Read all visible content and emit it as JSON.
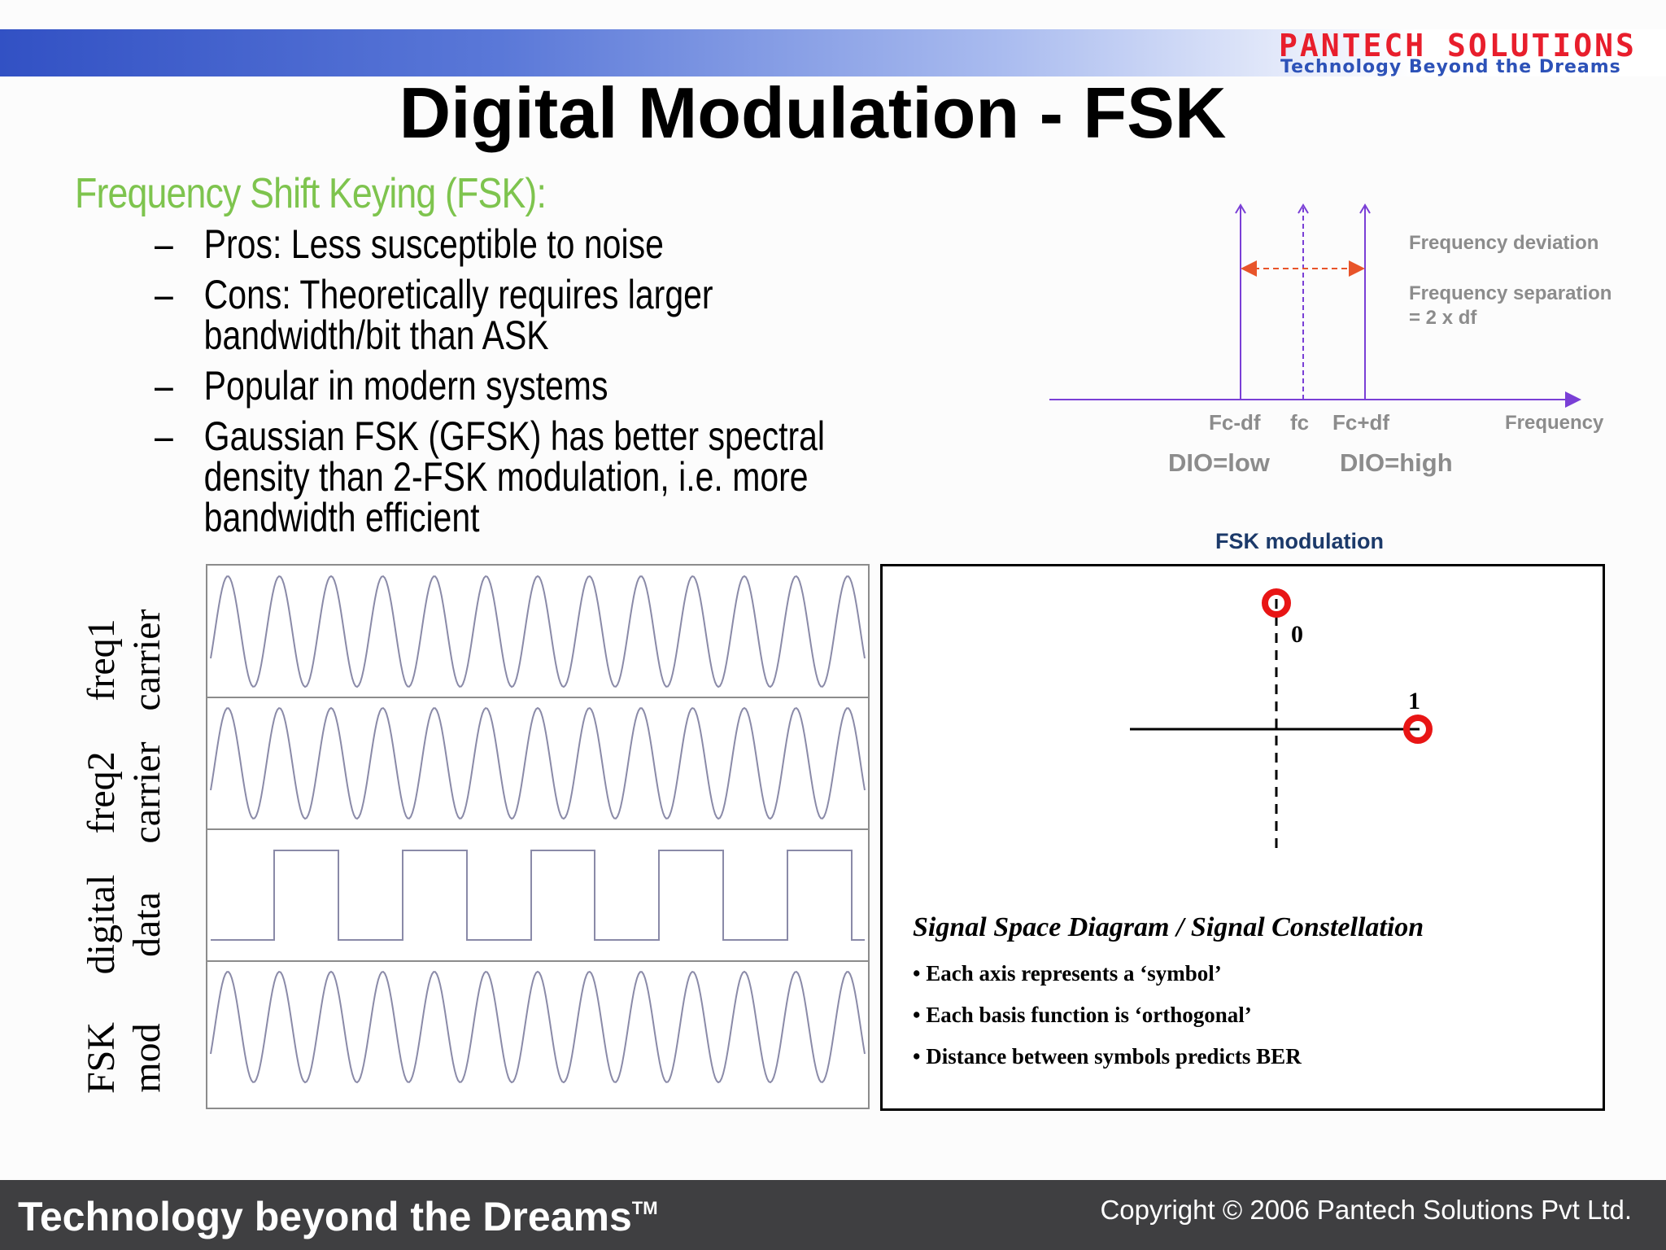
{
  "header": {
    "logo_main": "PANTECH SOLUTIONS",
    "logo_tagline": "Technology Beyond the Dreams",
    "title": "Digital Modulation - FSK"
  },
  "content": {
    "heading": "Frequency Shift Keying (FSK):",
    "bullets": [
      {
        "dash": "–",
        "text": "Pros: Less susceptible to noise"
      },
      {
        "dash": "–",
        "text": "Cons: Theoretically requires larger bandwidth/bit than ASK"
      },
      {
        "dash": "–",
        "text": "Popular in modern systems"
      },
      {
        "dash": "–",
        "text": "Gaussian FSK (GFSK) has better spectral density than 2-FSK modulation, i.e. more bandwidth efficient"
      }
    ]
  },
  "spectrum": {
    "deviation_label": "Frequency deviation",
    "separation_label_1": "Frequency separation",
    "separation_label_2": "= 2 x df",
    "tick_low": "Fc-df",
    "tick_center": "fc",
    "tick_high": "Fc+df",
    "axis_label": "Frequency",
    "dio_low": "DIO=low",
    "dio_high": "DIO=high",
    "colors": {
      "axis": "#7a3fd6",
      "deviation_arrow": "#e8542a"
    }
  },
  "waveforms": {
    "title": "FSK modulation",
    "rows": [
      {
        "line1": "freq1",
        "line2": "carrier"
      },
      {
        "line1": "freq2",
        "line2": "carrier"
      },
      {
        "line1": "digital",
        "line2": "data"
      },
      {
        "line1": "FSK",
        "line2": "mod"
      }
    ]
  },
  "constellation": {
    "point_0_label": "0",
    "point_1_label": "1",
    "title": "Signal Space Diagram / Signal Constellation",
    "items": [
      "• Each axis represents a ‘symbol’",
      "• Each basis function is ‘orthogonal’",
      "• Distance between symbols predicts BER"
    ],
    "colors": {
      "point": "#e81515"
    }
  },
  "footer": {
    "tagline": "Technology beyond the Dreams",
    "tm": "TM",
    "copyright": "Copyright © 2006 Pantech Solutions Pvt Ltd."
  }
}
